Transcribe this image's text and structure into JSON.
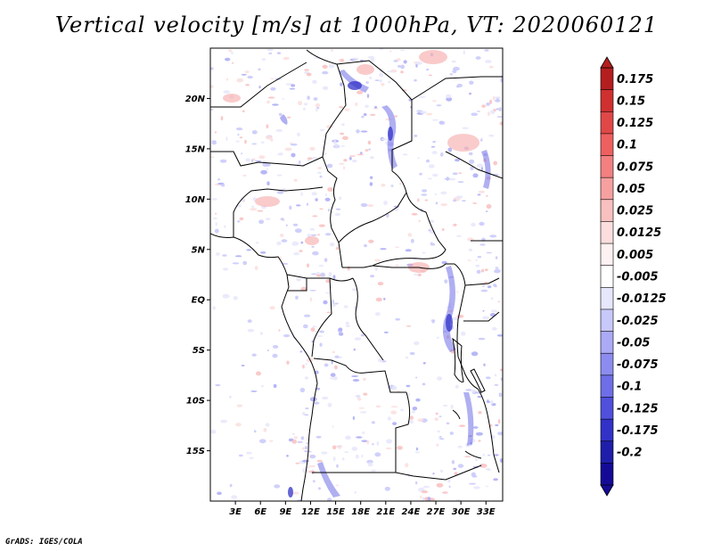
{
  "title": "Vertical velocity [m/s] at 1000hPa, VT: 2020060121",
  "footer": "GrADS: IGES/COLA",
  "map": {
    "lon_range": [
      0,
      35
    ],
    "lat_range": [
      -20,
      25
    ],
    "lat_ticks": [
      {
        "value": 20,
        "label": "20N"
      },
      {
        "value": 15,
        "label": "15N"
      },
      {
        "value": 10,
        "label": "10N"
      },
      {
        "value": 5,
        "label": "5N"
      },
      {
        "value": 0,
        "label": "EQ"
      },
      {
        "value": -5,
        "label": "5S"
      },
      {
        "value": -10,
        "label": "10S"
      },
      {
        "value": -15,
        "label": "15S"
      }
    ],
    "lon_ticks": [
      {
        "value": 3,
        "label": "3E"
      },
      {
        "value": 6,
        "label": "6E"
      },
      {
        "value": 9,
        "label": "9E"
      },
      {
        "value": 12,
        "label": "12E"
      },
      {
        "value": 15,
        "label": "15E"
      },
      {
        "value": 18,
        "label": "18E"
      },
      {
        "value": 21,
        "label": "21E"
      },
      {
        "value": 24,
        "label": "24E"
      },
      {
        "value": 27,
        "label": "27E"
      },
      {
        "value": 30,
        "label": "30E"
      },
      {
        "value": 33,
        "label": "33E"
      }
    ]
  },
  "colorbar": {
    "labels": [
      "0.175",
      "0.15",
      "0.125",
      "0.1",
      "0.075",
      "0.05",
      "0.025",
      "0.0125",
      "0.005",
      "-0.005",
      "-0.0125",
      "-0.025",
      "-0.05",
      "-0.075",
      "-0.1",
      "-0.125",
      "-0.175",
      "-0.2"
    ],
    "colors": [
      "#b41e1e",
      "#d03030",
      "#e04848",
      "#ee6060",
      "#f28080",
      "#f6a0a0",
      "#f9c0c0",
      "#fcdede",
      "#fff2f2",
      "#ffffff",
      "#e6e6fc",
      "#c8c8fa",
      "#aaaaf6",
      "#8c8cf0",
      "#6e6ee8",
      "#5050dc",
      "#3232c8",
      "#1e1eaa",
      "#140a96"
    ]
  }
}
